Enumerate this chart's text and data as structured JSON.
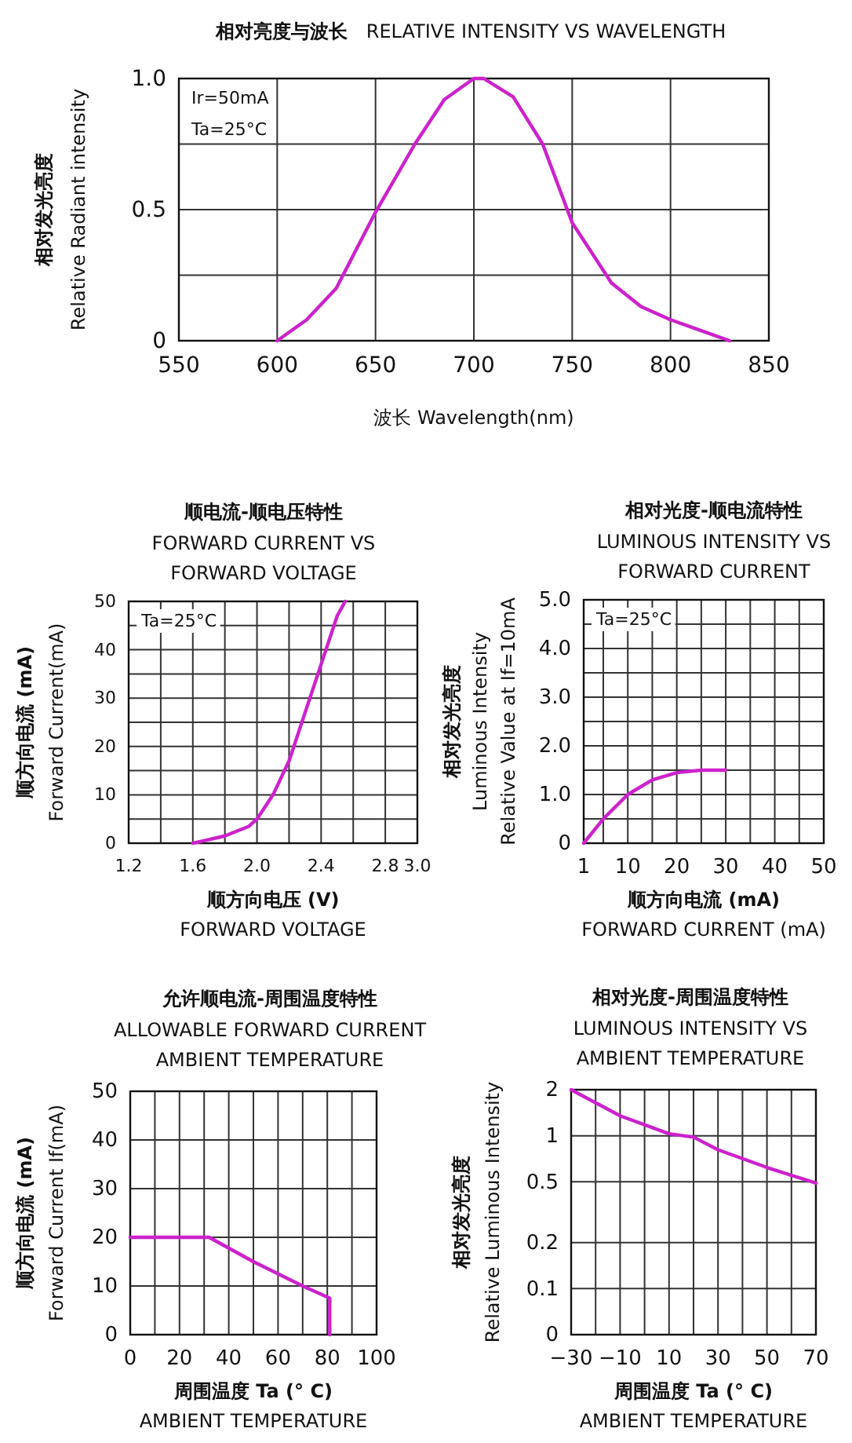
{
  "chart_data": [
    {
      "type": "line",
      "title": "相对亮度与波长",
      "subtitle": "RELATIVE INTENSITY VS WAVELENGTH",
      "xlabel": "波长  Wavelength(nm)",
      "ylabel": "相对发光亮度\nRelative Radiant intensity",
      "annotations": [
        "Ir=50mA",
        "Ta=25°C"
      ],
      "xlim": [
        550,
        850
      ],
      "xticks": [
        550,
        600,
        650,
        700,
        750,
        800,
        850
      ],
      "ylim": [
        0,
        1
      ],
      "yticks": [
        0,
        {
          "value": 0.25,
          "label": null
        },
        0.5,
        {
          "value": 0.75,
          "label": null
        },
        {
          "value": 1,
          "label": "1.0"
        }
      ],
      "grid": true,
      "line_style": "solid",
      "marker": "none",
      "x": [
        600,
        615,
        630,
        650,
        670,
        685,
        700,
        705,
        720,
        735,
        750,
        770,
        785,
        800,
        815,
        830
      ],
      "series": [
        {
          "color": "#cc22cc",
          "values": [
            0,
            0.08,
            0.2,
            0.49,
            0.75,
            0.92,
            1.0,
            1.0,
            0.93,
            0.75,
            0.45,
            0.22,
            0.13,
            0.08,
            0.04,
            0
          ]
        }
      ]
    },
    {
      "type": "line",
      "title": "顺电流-顺电压特性",
      "subtitle": "FORWARD CURRENT VS\nFORWARD VOLTAGE",
      "xlabel": "顺方向电压 (V)\nFORWARD VOLTAGE",
      "ylabel": "顺方向电流 (mA)\nForward Current(mA)",
      "annotations": [
        "Ta=25°C"
      ],
      "xlim": [
        1.2,
        3.0
      ],
      "xticks": [
        {
          "value": 1.2,
          "label": "1.2"
        },
        {
          "value": 1.4,
          "label": null
        },
        {
          "value": 1.6,
          "label": "1.6"
        },
        {
          "value": 1.8,
          "label": null
        },
        {
          "value": 2.0,
          "label": "2.0"
        },
        {
          "value": 2.2,
          "label": null
        },
        {
          "value": 2.4,
          "label": "2.4"
        },
        {
          "value": 2.6,
          "label": null
        },
        {
          "value": 2.8,
          "label": "2.8"
        },
        {
          "value": 3.0,
          "label": "3.0"
        }
      ],
      "ylim": [
        0,
        50
      ],
      "yticks": [
        0,
        {
          "value": 5,
          "label": null
        },
        10,
        {
          "value": 15,
          "label": null
        },
        20,
        {
          "value": 25,
          "label": null
        },
        30,
        {
          "value": 35,
          "label": null
        },
        40,
        {
          "value": 45,
          "label": null
        },
        50
      ],
      "grid": true,
      "line_style": "solid",
      "marker": "none",
      "x": [
        1.6,
        1.8,
        1.95,
        2.0,
        2.1,
        2.2,
        2.3,
        2.4,
        2.5,
        2.55
      ],
      "series": [
        {
          "color": "#cc22cc",
          "values": [
            0,
            1.5,
            3.5,
            5,
            10,
            17,
            27,
            37,
            47,
            50
          ]
        }
      ]
    },
    {
      "type": "line",
      "title": "相对光度-顺电流特性",
      "subtitle": "LUMINOUS INTENSITY VS\nFORWARD CURRENT",
      "xlabel": "顺方向电流 (mA)\nFORWARD CURRENT (mA)",
      "ylabel": "相对发光亮度\nLuminous Intensity\nRelative Value at If=10mA",
      "annotations": [
        "Ta=25°C"
      ],
      "xlim": [
        1,
        50
      ],
      "xticks": [
        1,
        {
          "value": 5,
          "label": null
        },
        10,
        {
          "value": 15,
          "label": null
        },
        20,
        {
          "value": 25,
          "label": null
        },
        30,
        {
          "value": 35,
          "label": null
        },
        40,
        {
          "value": 45,
          "label": null
        },
        50
      ],
      "ylim": [
        0,
        5
      ],
      "yticks": [
        0,
        {
          "value": 0.5,
          "label": null
        },
        {
          "value": 1,
          "label": "1.0"
        },
        {
          "value": 1.5,
          "label": null
        },
        {
          "value": 2,
          "label": "2.0"
        },
        {
          "value": 2.5,
          "label": null
        },
        {
          "value": 3,
          "label": "3.0"
        },
        {
          "value": 3.5,
          "label": null
        },
        {
          "value": 4,
          "label": "4.0"
        },
        {
          "value": 4.5,
          "label": null
        },
        {
          "value": 5,
          "label": "5.0"
        }
      ],
      "grid": true,
      "line_style": "solid",
      "marker": "none",
      "x": [
        1,
        5,
        10,
        15,
        20,
        25,
        30
      ],
      "series": [
        {
          "color": "#cc22cc",
          "values": [
            0,
            0.5,
            1.0,
            1.3,
            1.45,
            1.5,
            1.5
          ]
        }
      ]
    },
    {
      "type": "line",
      "title": "允许顺电流-周围温度特性",
      "subtitle": "ALLOWABLE FORWARD CURRENT\nAMBIENT TEMPERATURE",
      "xlabel": "周围温度 Ta (° C)\nAMBIENT TEMPERATURE",
      "ylabel": "顺方向电流 (mA)\nForward Current If(mA)",
      "xlim": [
        0,
        100
      ],
      "xticks": [
        0,
        {
          "value": 10,
          "label": null
        },
        20,
        {
          "value": 30,
          "label": null
        },
        40,
        {
          "value": 50,
          "label": null
        },
        60,
        {
          "value": 70,
          "label": null
        },
        80,
        {
          "value": 90,
          "label": null
        },
        100
      ],
      "ylim": [
        0,
        50
      ],
      "yticks": [
        0,
        10,
        20,
        30,
        40,
        50
      ],
      "grid": true,
      "line_style": "solid",
      "marker": "none",
      "x": [
        0,
        32,
        50,
        70,
        81,
        81
      ],
      "series": [
        {
          "color": "#cc22cc",
          "values": [
            20,
            20,
            15,
            10,
            7.5,
            0
          ]
        }
      ]
    },
    {
      "type": "line",
      "title": "相对光度-周围温度特性",
      "subtitle": "LUMINOUS INTENSITY VS\nAMBIENT TEMPERATURE",
      "xlabel": "周围温度 Ta (° C)\nAMBIENT TEMPERATURE",
      "ylabel": "相对发光亮度\nRelative Luminous Intensity",
      "xlim": [
        -30,
        70
      ],
      "xticks": [
        {
          "value": -30,
          "label": "−30"
        },
        {
          "value": -20,
          "label": null
        },
        {
          "value": -10,
          "label": "−10"
        },
        {
          "value": 0,
          "label": null
        },
        10,
        {
          "value": 20,
          "label": null
        },
        30,
        {
          "value": 40,
          "label": null
        },
        50,
        {
          "value": 60,
          "label": null
        },
        70
      ],
      "ylim": [
        0.05,
        2
      ],
      "yticks": [
        {
          "value": 0.05,
          "label": "0"
        },
        0.1,
        0.2,
        0.5,
        1,
        2
      ],
      "log": "y",
      "grid": true,
      "line_style": "solid",
      "marker": "none",
      "x": [
        -30,
        -10,
        10,
        20,
        30,
        50,
        70
      ],
      "series": [
        {
          "color": "#cc22cc",
          "values": [
            2,
            1.35,
            1.03,
            0.98,
            0.81,
            0.62,
            0.49
          ]
        }
      ]
    }
  ]
}
